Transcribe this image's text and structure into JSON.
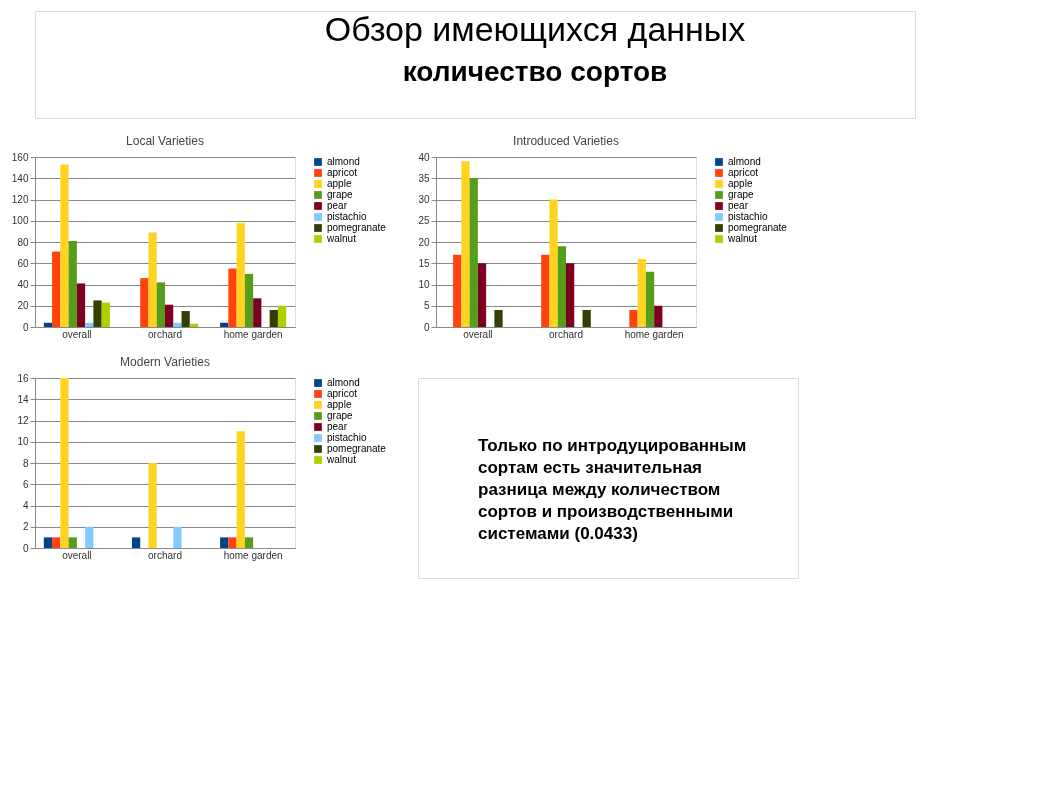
{
  "chart_data": [
    {
      "type": "other",
      "title": "Обзор имеющихся данных",
      "subtitle": "количество сортов"
    },
    {
      "type": "bar",
      "title": "Local Varieties",
      "categories": [
        "overall",
        "orchard",
        "home garden"
      ],
      "ylim": [
        0,
        160
      ],
      "yticks": [
        0,
        20,
        40,
        60,
        80,
        100,
        120,
        140,
        160
      ],
      "grid": "y",
      "legend": "right",
      "series": [
        {
          "name": "almond",
          "color": "#004586",
          "values": [
            4,
            0,
            4
          ]
        },
        {
          "name": "apricot",
          "color": "#ff420e",
          "values": [
            71,
            46,
            55
          ]
        },
        {
          "name": "apple",
          "color": "#ffd320",
          "values": [
            153,
            89,
            98
          ]
        },
        {
          "name": "grape",
          "color": "#579d1c",
          "values": [
            81,
            42,
            50
          ]
        },
        {
          "name": "pear",
          "color": "#7e0021",
          "values": [
            41,
            21,
            27
          ]
        },
        {
          "name": "pistachio",
          "color": "#83caff",
          "values": [
            4,
            4,
            0
          ]
        },
        {
          "name": "pomegranate",
          "color": "#314004",
          "values": [
            25,
            15,
            16
          ]
        },
        {
          "name": "walnut",
          "color": "#aecf00",
          "values": [
            23,
            3,
            20
          ]
        }
      ]
    },
    {
      "type": "bar",
      "title": "Introduced Varieties",
      "categories": [
        "overall",
        "orchard",
        "home garden"
      ],
      "ylim": [
        0,
        40
      ],
      "yticks": [
        0,
        5,
        10,
        15,
        20,
        25,
        30,
        35,
        40
      ],
      "grid": "y",
      "legend": "right",
      "series": [
        {
          "name": "almond",
          "color": "#004586",
          "values": [
            0,
            0,
            0
          ]
        },
        {
          "name": "apricot",
          "color": "#ff420e",
          "values": [
            17,
            17,
            4
          ]
        },
        {
          "name": "apple",
          "color": "#ffd320",
          "values": [
            39,
            30,
            16
          ]
        },
        {
          "name": "grape",
          "color": "#579d1c",
          "values": [
            35,
            19,
            13
          ]
        },
        {
          "name": "pear",
          "color": "#7e0021",
          "values": [
            15,
            15,
            5
          ]
        },
        {
          "name": "pistachio",
          "color": "#83caff",
          "values": [
            0,
            0,
            0
          ]
        },
        {
          "name": "pomegranate",
          "color": "#314004",
          "values": [
            4,
            4,
            0
          ]
        },
        {
          "name": "walnut",
          "color": "#aecf00",
          "values": [
            0,
            0,
            0
          ]
        }
      ]
    },
    {
      "type": "bar",
      "title": "Modern Varieties",
      "categories": [
        "overall",
        "orchard",
        "home garden"
      ],
      "ylim": [
        0,
        16
      ],
      "yticks": [
        0,
        2,
        4,
        6,
        8,
        10,
        12,
        14,
        16
      ],
      "grid": "y",
      "legend": "right",
      "series": [
        {
          "name": "almond",
          "color": "#004586",
          "values": [
            1,
            1,
            1
          ]
        },
        {
          "name": "apricot",
          "color": "#ff420e",
          "values": [
            1,
            0,
            1
          ]
        },
        {
          "name": "apple",
          "color": "#ffd320",
          "values": [
            16,
            8,
            11
          ]
        },
        {
          "name": "grape",
          "color": "#579d1c",
          "values": [
            1,
            0,
            1
          ]
        },
        {
          "name": "pear",
          "color": "#7e0021",
          "values": [
            0,
            0,
            0
          ]
        },
        {
          "name": "pistachio",
          "color": "#83caff",
          "values": [
            2,
            2,
            0
          ]
        },
        {
          "name": "pomegranate",
          "color": "#314004",
          "values": [
            0,
            0,
            0
          ]
        },
        {
          "name": "walnut",
          "color": "#aecf00",
          "values": [
            0,
            0,
            0
          ]
        }
      ]
    },
    {
      "type": "other",
      "annotations": [
        "Только по интродуцированным сортам есть значительная разница между количеством сортов и производственными системами (0.0433)"
      ]
    }
  ]
}
